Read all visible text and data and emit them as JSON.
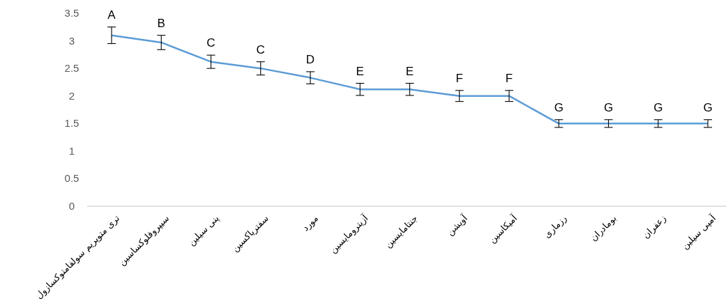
{
  "chart_data": {
    "type": "line",
    "color": "#5b9bd5",
    "marker": "none",
    "categories": [
      "تری متوپریم سولفامتوکسازول",
      "سیپروفلوکساسین",
      "پنی سیلین",
      "سفتریاکسین",
      "مورد",
      "آزیترومایسین",
      "جنتامایسین",
      "آویشن",
      "آمیکاسین",
      "رزماری",
      "بومادران",
      "زعفران",
      "آمپی سیلین"
    ],
    "values": [
      3.1,
      2.97,
      2.62,
      2.5,
      2.33,
      2.12,
      2.12,
      2.0,
      2.0,
      1.5,
      1.5,
      1.5,
      1.5
    ],
    "errors": [
      0.15,
      0.13,
      0.12,
      0.12,
      0.11,
      0.11,
      0.11,
      0.1,
      0.1,
      0.07,
      0.07,
      0.07,
      0.07
    ],
    "ylim": [
      0,
      3.5
    ],
    "yticks": [
      0,
      0.5,
      1,
      1.5,
      2,
      2.5,
      3,
      3.5
    ],
    "annotations": [
      "A",
      "B",
      "C",
      "C",
      "D",
      "E",
      "E",
      "F",
      "F",
      "G",
      "G",
      "G",
      "G"
    ]
  }
}
